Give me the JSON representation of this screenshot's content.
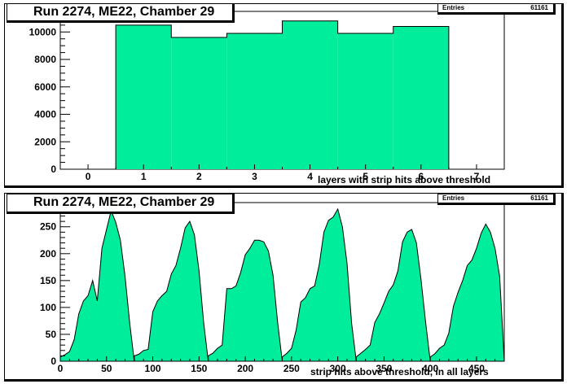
{
  "charts": [
    {
      "title": "Run 2274, ME22, Chamber 29",
      "stats": {
        "label": "Entries",
        "value": "61161"
      },
      "xlabel": "layers with strip hits above threshold"
    },
    {
      "title": "Run 2274, ME22, Chamber 29",
      "stats": {
        "label": "Entries",
        "value": "61161"
      },
      "xlabel": "strip hits above threshold, in all layers"
    }
  ],
  "colors": {
    "fill": "#00ee9c",
    "line": "#000000",
    "frame": "#000000"
  },
  "chart_data": [
    {
      "type": "bar",
      "title": "Run 2274, ME22, Chamber 29",
      "xlabel": "layers with strip hits above threshold",
      "ylabel": "",
      "xlim": [
        -0.5,
        7.5
      ],
      "ylim": [
        0,
        11500
      ],
      "xticks": [
        0,
        1,
        2,
        3,
        4,
        5,
        6,
        7
      ],
      "yticks": [
        0,
        2000,
        4000,
        6000,
        8000,
        10000
      ],
      "bin_width": 1,
      "categories": [
        1,
        2,
        3,
        4,
        5,
        6
      ],
      "values": [
        10500,
        9600,
        9900,
        10800,
        9900,
        10400
      ],
      "grid": false,
      "legend": "none"
    },
    {
      "type": "area",
      "title": "Run 2274, ME22, Chamber 29",
      "xlabel": "strip hits above threshold, in all layers",
      "ylabel": "",
      "xlim": [
        0,
        480
      ],
      "ylim": [
        0,
        295
      ],
      "xticks": [
        0,
        50,
        100,
        150,
        200,
        250,
        300,
        350,
        400,
        450
      ],
      "yticks": [
        0,
        50,
        100,
        150,
        200,
        250
      ],
      "peaks": [
        {
          "x": [
            0,
            5,
            10,
            15,
            20,
            25,
            30,
            35,
            40,
            45,
            50,
            55,
            60,
            65,
            70,
            75,
            80
          ],
          "y": [
            8,
            12,
            18,
            40,
            88,
            112,
            122,
            150,
            112,
            210,
            245,
            280,
            258,
            225,
            158,
            72,
            0
          ]
        },
        {
          "x": [
            80,
            85,
            90,
            95,
            100,
            105,
            110,
            115,
            120,
            125,
            130,
            135,
            140,
            145,
            150,
            155,
            160
          ],
          "y": [
            10,
            13,
            20,
            22,
            92,
            112,
            122,
            130,
            162,
            178,
            210,
            248,
            260,
            235,
            168,
            72,
            0
          ]
        },
        {
          "x": [
            160,
            165,
            170,
            175,
            180,
            185,
            190,
            195,
            200,
            205,
            210,
            215,
            220,
            225,
            230,
            235,
            240
          ],
          "y": [
            10,
            15,
            24,
            30,
            135,
            135,
            140,
            165,
            198,
            210,
            225,
            225,
            222,
            205,
            160,
            72,
            0
          ]
        },
        {
          "x": [
            240,
            245,
            250,
            255,
            260,
            265,
            270,
            275,
            280,
            285,
            290,
            295,
            300,
            305,
            310,
            315,
            320
          ],
          "y": [
            8,
            15,
            24,
            58,
            110,
            118,
            135,
            140,
            180,
            240,
            262,
            268,
            283,
            250,
            182,
            70,
            0
          ]
        },
        {
          "x": [
            320,
            325,
            330,
            335,
            340,
            345,
            350,
            355,
            360,
            365,
            370,
            375,
            380,
            385,
            390,
            395,
            400
          ],
          "y": [
            8,
            15,
            22,
            30,
            72,
            88,
            108,
            130,
            142,
            168,
            222,
            240,
            245,
            220,
            152,
            72,
            0
          ]
        },
        {
          "x": [
            400,
            405,
            410,
            415,
            420,
            425,
            430,
            435,
            440,
            445,
            450,
            455,
            460,
            465,
            470,
            475,
            480
          ],
          "y": [
            8,
            14,
            24,
            30,
            52,
            102,
            128,
            150,
            178,
            188,
            210,
            238,
            255,
            240,
            210,
            158,
            0
          ]
        }
      ],
      "grid": false,
      "legend": "none"
    }
  ]
}
